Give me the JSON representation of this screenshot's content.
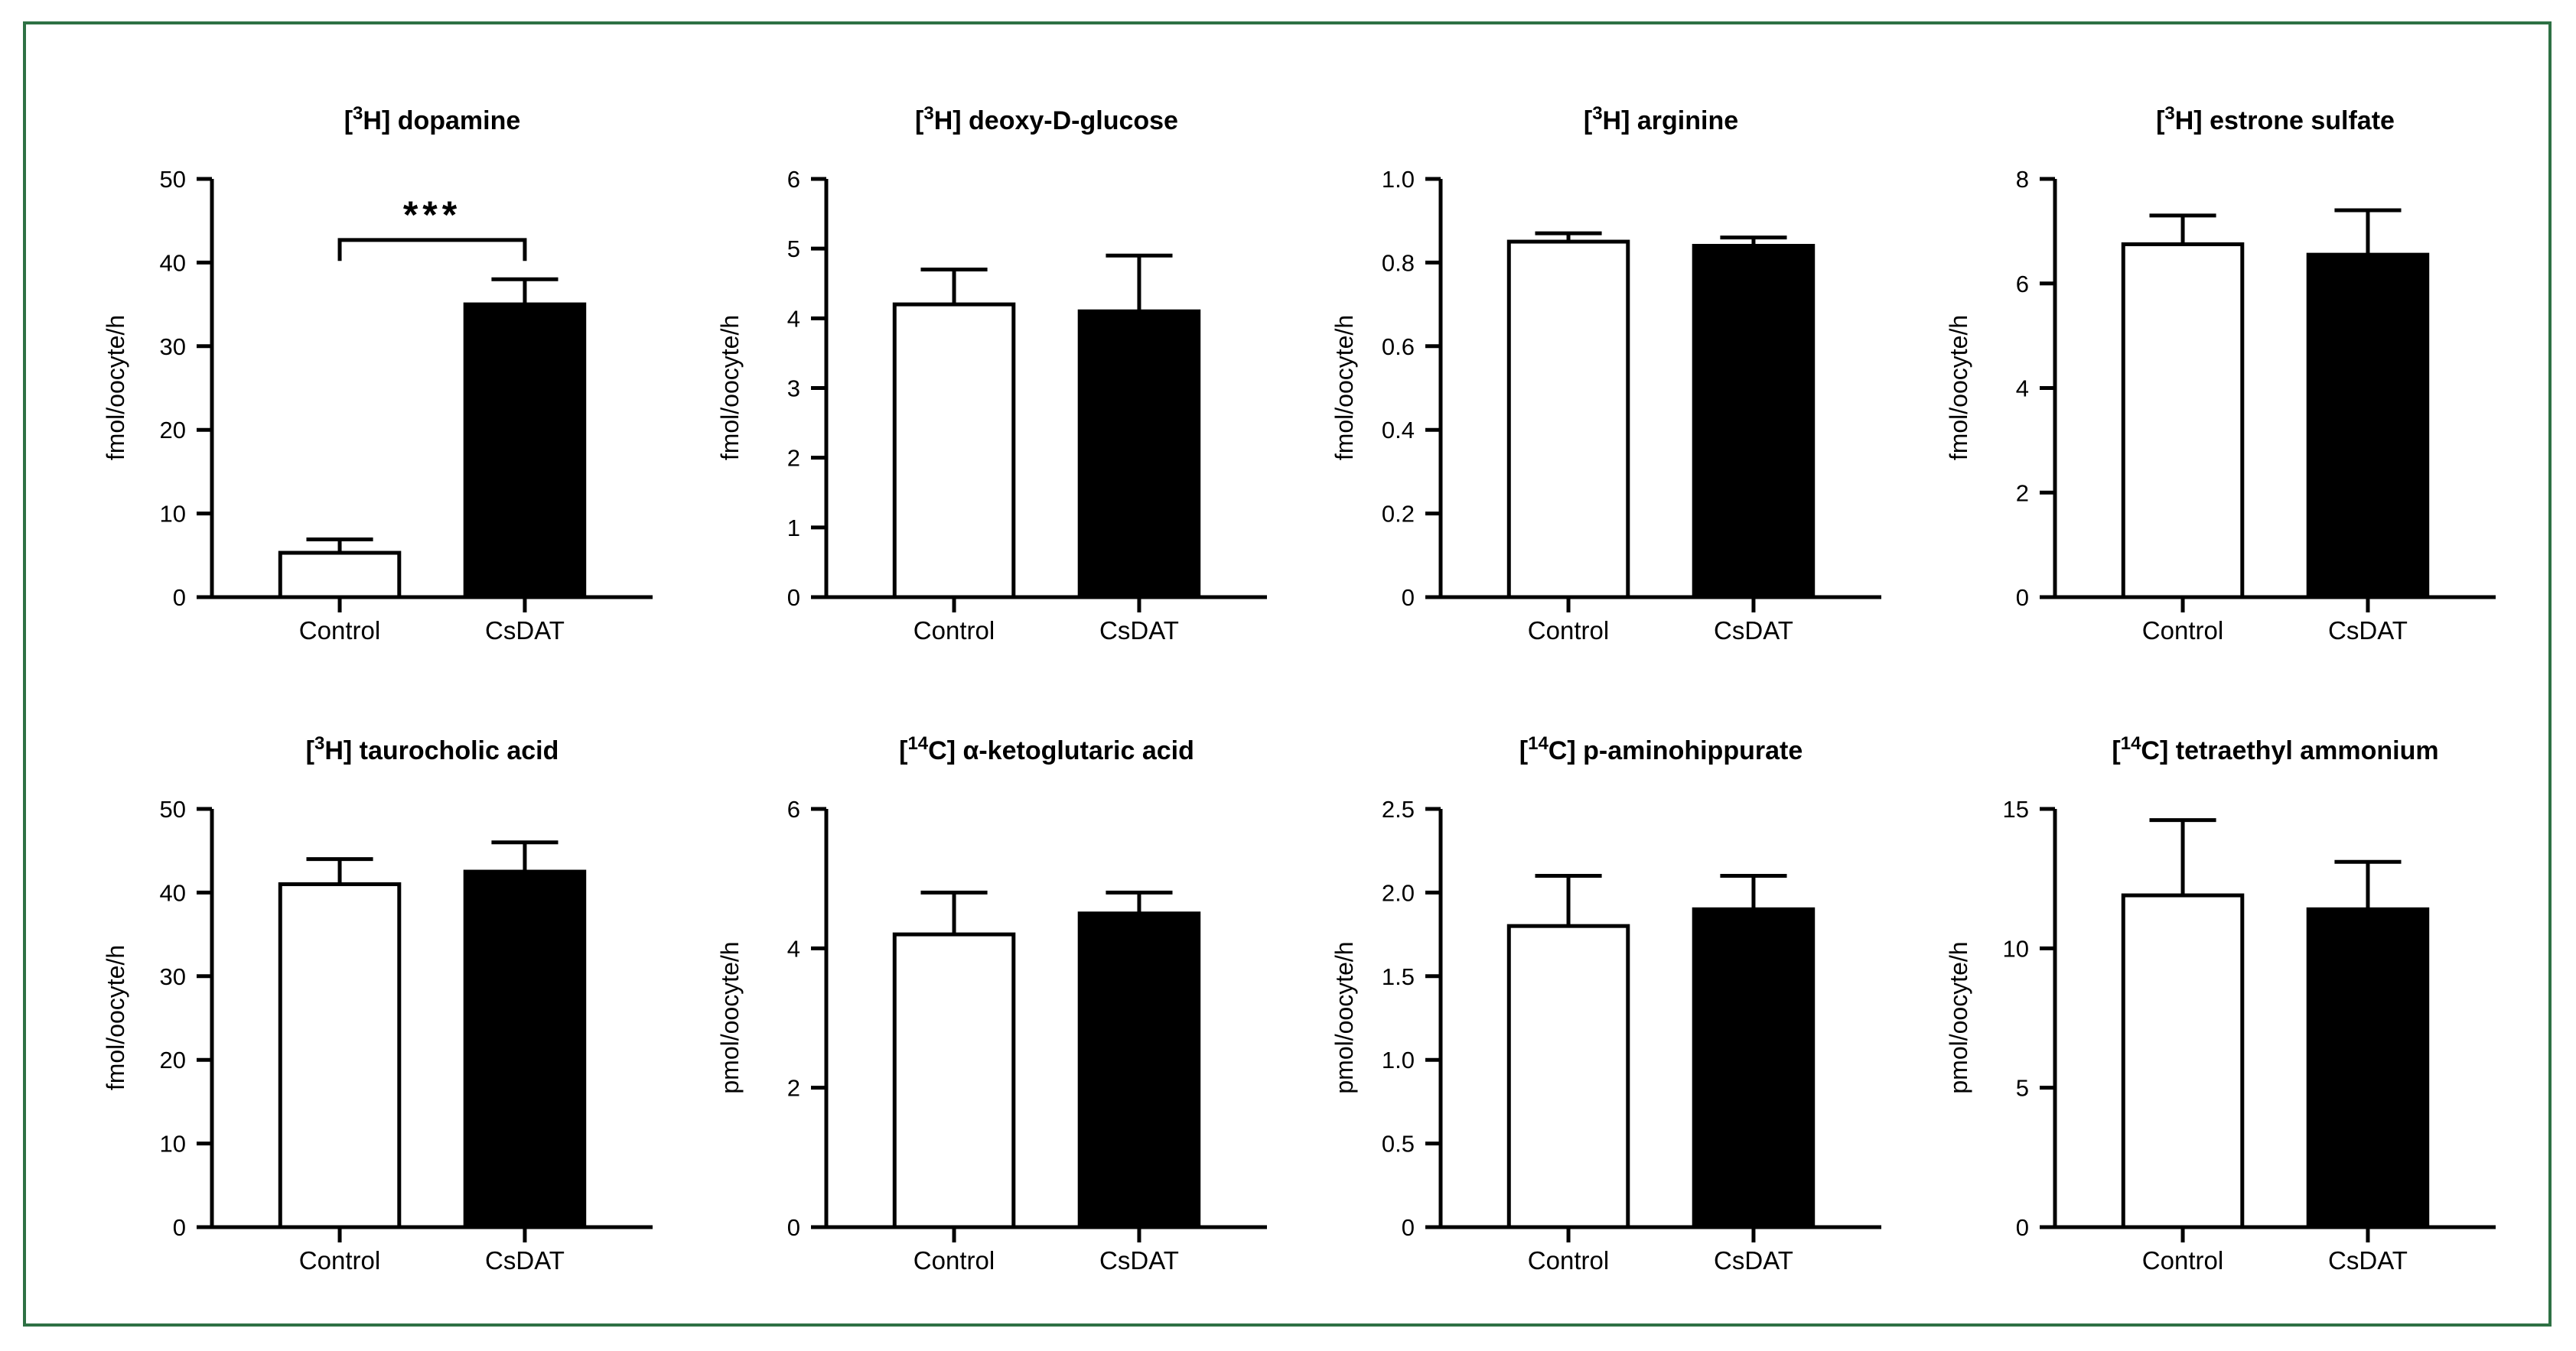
{
  "colors": {
    "frame_border": "#2e7144",
    "bar_fills": [
      "#ffffff",
      "#000000"
    ],
    "bar_stroke": "#000000",
    "text": "#000000",
    "background": "#ffffff"
  },
  "chart_data": [
    {
      "type": "bar",
      "title_pre": "[",
      "isotope": "3",
      "title_post": "H] dopamine",
      "ylabel": "fmol/oocyte/h",
      "ylim": [
        0,
        50
      ],
      "ytick_values": [
        0,
        10,
        20,
        30,
        40,
        50
      ],
      "ytick_labels": [
        "0",
        "10",
        "20",
        "30",
        "40",
        "50"
      ],
      "categories": [
        "Control",
        "CsDAT"
      ],
      "values": [
        5.3,
        35
      ],
      "error_top": [
        6.9,
        38
      ],
      "significance": {
        "label": "***",
        "bracket_value": 42.7,
        "drop_value": 40.2
      }
    },
    {
      "type": "bar",
      "title_pre": "[",
      "isotope": "3",
      "title_post": "H] deoxy-D-glucose",
      "ylabel": "fmol/oocyte/h",
      "ylim": [
        0,
        6
      ],
      "ytick_values": [
        0,
        1,
        2,
        3,
        4,
        5,
        6
      ],
      "ytick_labels": [
        "0",
        "1",
        "2",
        "3",
        "4",
        "5",
        "6"
      ],
      "categories": [
        "Control",
        "CsDAT"
      ],
      "values": [
        4.2,
        4.1
      ],
      "error_top": [
        4.7,
        4.9
      ],
      "significance": null
    },
    {
      "type": "bar",
      "title_pre": "[",
      "isotope": "3",
      "title_post": "H] arginine",
      "ylabel": "fmol/oocyte/h",
      "ylim": [
        0,
        1.0
      ],
      "ytick_values": [
        0,
        0.2,
        0.4,
        0.6,
        0.8,
        1.0
      ],
      "ytick_labels": [
        "0",
        "0.2",
        "0.4",
        "0.6",
        "0.8",
        "1.0"
      ],
      "categories": [
        "Control",
        "CsDAT"
      ],
      "values": [
        0.85,
        0.84
      ],
      "error_top": [
        0.87,
        0.86
      ],
      "significance": null
    },
    {
      "type": "bar",
      "title_pre": "[",
      "isotope": "3",
      "title_post": "H] estrone sulfate",
      "ylabel": "fmol/oocyte/h",
      "ylim": [
        0,
        8
      ],
      "ytick_values": [
        0,
        2,
        4,
        6,
        8
      ],
      "ytick_labels": [
        "0",
        "2",
        "4",
        "6",
        "8"
      ],
      "categories": [
        "Control",
        "CsDAT"
      ],
      "values": [
        6.75,
        6.55
      ],
      "error_top": [
        7.3,
        7.4
      ],
      "significance": null
    },
    {
      "type": "bar",
      "title_pre": "[",
      "isotope": "3",
      "title_post": "H] taurocholic acid",
      "ylabel": "fmol/oocyte/h",
      "ylim": [
        0,
        50
      ],
      "ytick_values": [
        0,
        10,
        20,
        30,
        40,
        50
      ],
      "ytick_labels": [
        "0",
        "10",
        "20",
        "30",
        "40",
        "50"
      ],
      "categories": [
        "Control",
        "CsDAT"
      ],
      "values": [
        41,
        42.5
      ],
      "error_top": [
        44,
        46
      ],
      "significance": null
    },
    {
      "type": "bar",
      "title_pre": "[",
      "isotope": "14",
      "title_post": "C] α-ketoglutaric acid",
      "ylabel": "pmol/oocyte/h",
      "ylim": [
        0,
        6
      ],
      "ytick_values": [
        0,
        2,
        4,
        6
      ],
      "ytick_labels": [
        "0",
        "2",
        "4",
        "6"
      ],
      "categories": [
        "Control",
        "CsDAT"
      ],
      "values": [
        4.2,
        4.5
      ],
      "error_top": [
        4.8,
        4.8
      ],
      "significance": null
    },
    {
      "type": "bar",
      "title_pre": "[",
      "isotope": "14",
      "title_post": "C] p-aminohippurate",
      "ylabel": "pmol/oocyte/h",
      "ylim": [
        0,
        2.5
      ],
      "ytick_values": [
        0,
        0.5,
        1.0,
        1.5,
        2.0,
        2.5
      ],
      "ytick_labels": [
        "0",
        "0.5",
        "1.0",
        "1.5",
        "2.0",
        "2.5"
      ],
      "categories": [
        "Control",
        "CsDAT"
      ],
      "values": [
        1.8,
        1.9
      ],
      "error_top": [
        2.1,
        2.1
      ],
      "significance": null
    },
    {
      "type": "bar",
      "title_pre": "[",
      "isotope": "14",
      "title_post": "C] tetraethyl ammonium",
      "ylabel": "pmol/oocyte/h",
      "ylim": [
        0,
        15
      ],
      "ytick_values": [
        0,
        5,
        10,
        15
      ],
      "ytick_labels": [
        "0",
        "5",
        "10",
        "15"
      ],
      "categories": [
        "Control",
        "CsDAT"
      ],
      "values": [
        11.9,
        11.4
      ],
      "error_top": [
        14.6,
        13.1
      ],
      "significance": null
    }
  ]
}
